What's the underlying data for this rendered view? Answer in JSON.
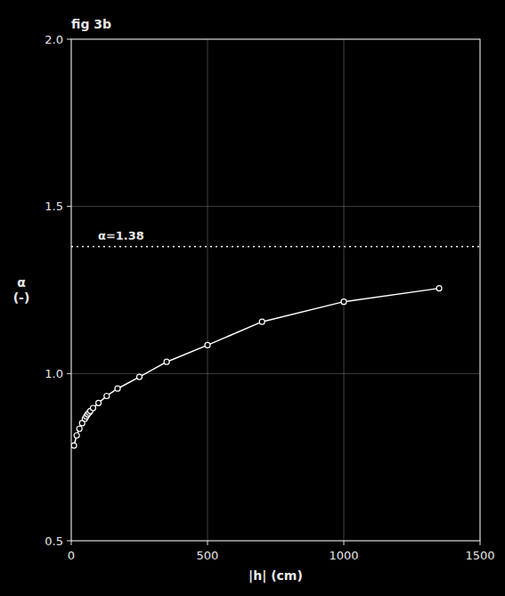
{
  "chart_data": {
    "type": "line",
    "title": "fig 3b",
    "x_label": "|h| (cm)",
    "y_label": "α\n(-)",
    "x": [
      10,
      20,
      30,
      40,
      50,
      55,
      60,
      65,
      70,
      80,
      100,
      130,
      170,
      250,
      350,
      500,
      700,
      1000,
      1350
    ],
    "values": [
      0.785,
      0.815,
      0.835,
      0.852,
      0.865,
      0.872,
      0.878,
      0.883,
      0.888,
      0.897,
      0.912,
      0.933,
      0.955,
      0.99,
      1.035,
      1.085,
      1.155,
      1.215,
      1.255
    ],
    "color": "#ffffff",
    "marker": "circle",
    "line_style": "solid",
    "hline": {
      "value": 1.38,
      "label": "α=1.38",
      "line_style": "dotted"
    },
    "xlim": [
      0,
      1500
    ],
    "xticks": [
      0,
      500,
      1000,
      1500
    ],
    "ylim": [
      0.5,
      2
    ],
    "yticks": [
      0.5,
      {
        "value": 1,
        "label": "1.0"
      },
      1.5,
      {
        "value": 2,
        "label": "2.0"
      }
    ],
    "grid": true
  }
}
